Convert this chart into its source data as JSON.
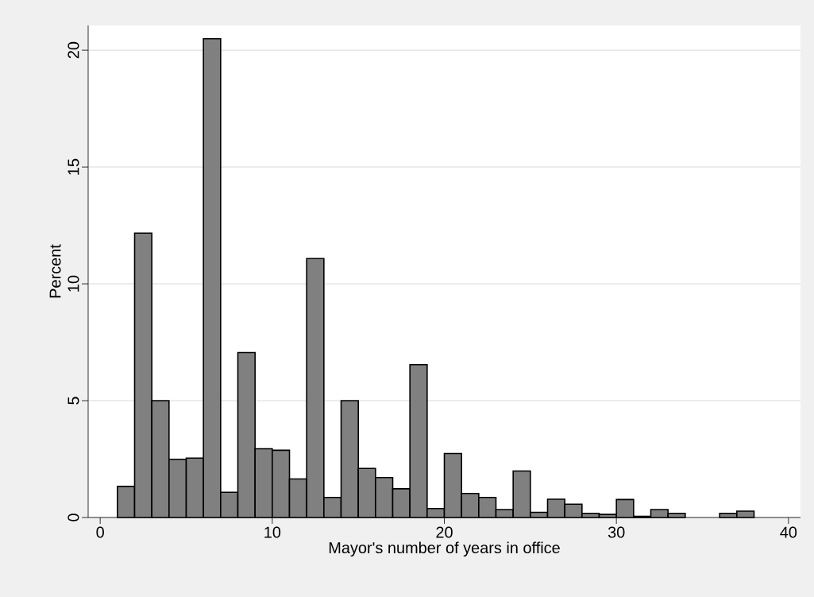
{
  "chart_data": {
    "type": "histogram",
    "xlabel": "Mayor's number of years in office",
    "ylabel": "Percent",
    "bins": [
      1,
      2,
      3,
      4,
      5,
      6,
      7,
      8,
      9,
      10,
      11,
      12,
      13,
      14,
      15,
      16,
      17,
      18,
      19,
      20,
      21,
      22,
      23,
      24,
      25,
      26,
      27,
      28,
      29,
      30,
      31,
      32,
      33,
      34,
      35,
      36,
      37,
      38
    ],
    "values": [
      1.33,
      12.17,
      5.0,
      2.49,
      2.54,
      20.49,
      1.08,
      7.06,
      2.94,
      2.88,
      1.65,
      11.08,
      0.86,
      5.0,
      2.1,
      1.71,
      1.23,
      6.54,
      0.38,
      2.74,
      1.03,
      0.86,
      0.34,
      1.99,
      0.22,
      0.78,
      0.57,
      0.18,
      0.13,
      0.77,
      0.05,
      0.34,
      0.18,
      0,
      0,
      0.18,
      0.27
    ],
    "color": "#808080",
    "xlim": [
      -0.7,
      40.7
    ],
    "ylim": [
      0,
      21.06
    ],
    "xticks": [
      0,
      10,
      20,
      30,
      40
    ],
    "yticks": [
      0,
      5,
      10,
      15,
      20
    ],
    "grid": "y"
  }
}
